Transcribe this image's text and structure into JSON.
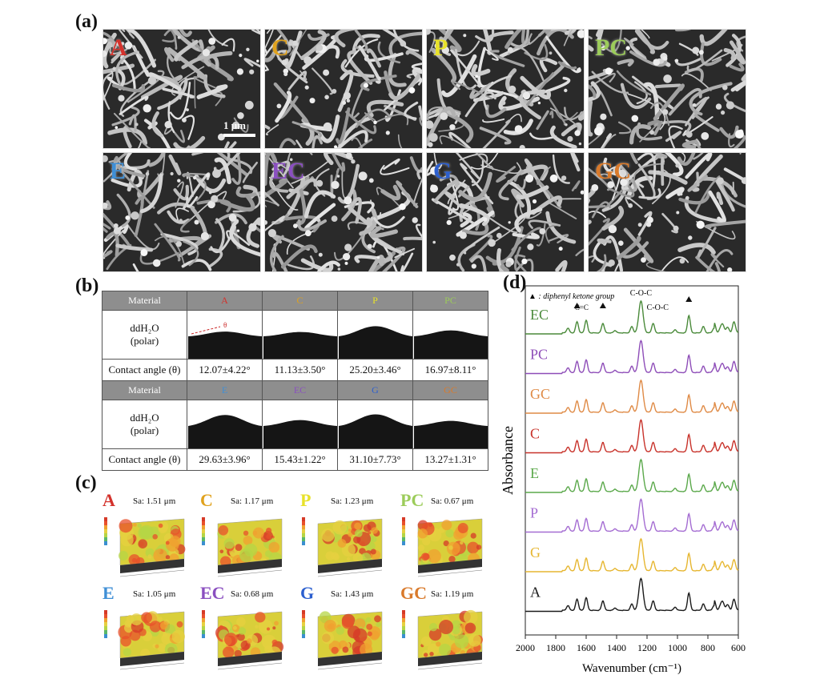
{
  "panels": {
    "a": "(a)",
    "b": "(b)",
    "c": "(c)",
    "d": "(d)"
  },
  "sem": {
    "scale_bar": "1 μm",
    "tiles": [
      {
        "label": "A",
        "color": "#d3322c"
      },
      {
        "label": "C",
        "color": "#e0a21e"
      },
      {
        "label": "P",
        "color": "#e8e22a"
      },
      {
        "label": "PC",
        "color": "#9ccc5a"
      },
      {
        "label": "E",
        "color": "#3f8fd6"
      },
      {
        "label": "EC",
        "color": "#8a4fc0"
      },
      {
        "label": "G",
        "color": "#2c5fcf"
      },
      {
        "label": "GC",
        "color": "#d97a2b"
      }
    ]
  },
  "contact_table": {
    "material_header": "Material",
    "liquid_line1": "ddH₂O",
    "liquid_line2": "(polar)",
    "angle_label": "Contact angle (θ)",
    "theta_marker": "θ",
    "row1": [
      {
        "name": "A",
        "color": "#d3322c",
        "value": "12.07±4.22°"
      },
      {
        "name": "C",
        "color": "#e0a21e",
        "value": "11.13±3.50°"
      },
      {
        "name": "P",
        "color": "#e8e22a",
        "value": "25.20±3.46°"
      },
      {
        "name": "PC",
        "color": "#9ccc5a",
        "value": "16.97±8.11°"
      }
    ],
    "row2": [
      {
        "name": "E",
        "color": "#3f8fd6",
        "value": "29.63±3.96°"
      },
      {
        "name": "EC",
        "color": "#8a4fc0",
        "value": "15.43±1.22°"
      },
      {
        "name": "G",
        "color": "#2c5fcf",
        "value": "31.10±7.73°"
      },
      {
        "name": "GC",
        "color": "#d97a2b",
        "value": "13.27±1.31°"
      }
    ]
  },
  "roughness": [
    {
      "label": "A",
      "color": "#d3322c",
      "sa": "Sa: 1.51 μm"
    },
    {
      "label": "C",
      "color": "#e0a21e",
      "sa": "Sa: 1.17 μm"
    },
    {
      "label": "P",
      "color": "#e8e22a",
      "sa": "Sa: 1.23 μm"
    },
    {
      "label": "PC",
      "color": "#9ccc5a",
      "sa": "Sa: 0.67 μm"
    },
    {
      "label": "E",
      "color": "#3f8fd6",
      "sa": "Sa: 1.05 μm"
    },
    {
      "label": "EC",
      "color": "#8a4fc0",
      "sa": "Sa: 0.68 μm"
    },
    {
      "label": "G",
      "color": "#2c5fcf",
      "sa": "Sa: 1.43 μm"
    },
    {
      "label": "GC",
      "color": "#d97a2b",
      "sa": "Sa: 1.19 μm"
    }
  ],
  "chart_data": {
    "type": "line",
    "legend_note": "▲ : diphenyl ketone group",
    "xlabel": "Wavenumber (cm⁻¹)",
    "ylabel": "Absorbance",
    "xlim": [
      2000,
      600
    ],
    "xticks": [
      2000,
      1800,
      1600,
      1400,
      1200,
      1000,
      800,
      600
    ],
    "annotations": [
      "C-O-C",
      "C=C",
      "C-O-C"
    ],
    "marker_positions": [
      1660,
      1490,
      925
    ],
    "series": [
      {
        "name": "EC",
        "color": "#4a8a3a"
      },
      {
        "name": "PC",
        "color": "#8e4db8"
      },
      {
        "name": "GC",
        "color": "#df8a45"
      },
      {
        "name": "C",
        "color": "#c8322a"
      },
      {
        "name": "E",
        "color": "#5aa84a"
      },
      {
        "name": "P",
        "color": "#a46cd2"
      },
      {
        "name": "G",
        "color": "#e6b630"
      },
      {
        "name": "A",
        "color": "#1a1a1a"
      }
    ],
    "peaks_cm1": [
      1720,
      1660,
      1600,
      1490,
      1410,
      1300,
      1240,
      1160,
      1015,
      925,
      830,
      760,
      700,
      630
    ]
  }
}
